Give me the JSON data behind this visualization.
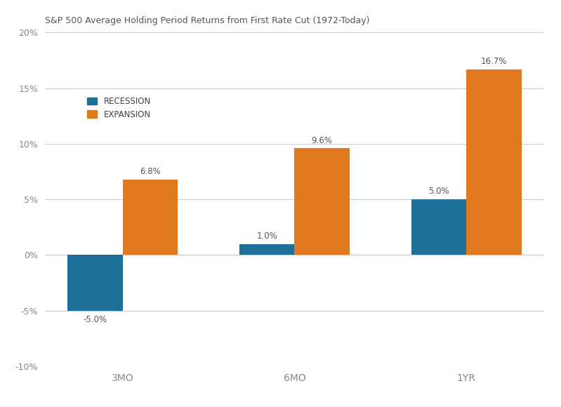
{
  "title": "S&P 500 Average Holding Period Returns from First Rate Cut (1972-Today)",
  "categories": [
    "3MO",
    "6MO",
    "1YR"
  ],
  "recession_values": [
    -5.0,
    1.0,
    5.0
  ],
  "expansion_values": [
    6.8,
    9.6,
    16.7
  ],
  "recession_color": "#1f7096",
  "expansion_color": "#e07820",
  "recession_label": "RECESSION",
  "expansion_label": "EXPANSION",
  "ylim": [
    -10,
    20
  ],
  "yticks": [
    -10,
    -5,
    0,
    5,
    10,
    15,
    20
  ],
  "background_color": "#ffffff",
  "grid_color": "#cccccc",
  "bar_label_color": "#555555",
  "title_color": "#555555",
  "axis_label_color": "#888888",
  "legend_label_color": "#444444",
  "bar_width": 0.32
}
